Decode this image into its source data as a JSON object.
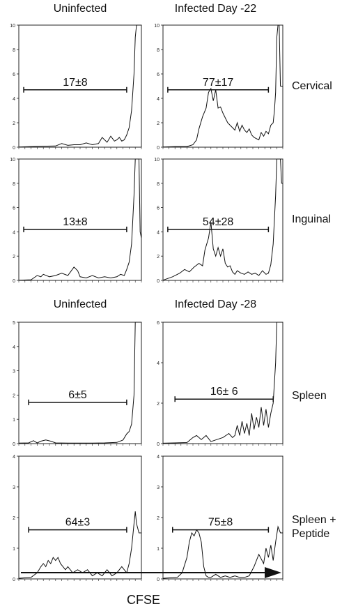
{
  "headers": {
    "top_left": "Uninfected",
    "top_right": "Infected Day -22",
    "bottom_left": "Uninfected",
    "bottom_right": "Infected Day -28"
  },
  "row_labels": {
    "cervical": "Cervical",
    "inguinal": "Inguinal",
    "spleen": "Spleen",
    "spleen_peptide_line1": "Spleen +",
    "spleen_peptide_line2": "Peptide"
  },
  "x_axis_label": "CFSE",
  "chart_data": [
    {
      "type": "line",
      "id": "cervical-uninfected",
      "ylim": [
        0,
        10
      ],
      "yticks": [
        "0",
        "2",
        "4",
        "6",
        "8",
        "10"
      ],
      "xlim": [
        0,
        100
      ],
      "gate": {
        "label": "17±8",
        "x_start": 4,
        "x_end": 88,
        "y": 4.7
      },
      "x": [
        0,
        10,
        20,
        30,
        35,
        40,
        45,
        50,
        55,
        60,
        65,
        68,
        72,
        75,
        78,
        80,
        82,
        84,
        86,
        88,
        90,
        92,
        94,
        95,
        96,
        97,
        98,
        99,
        100
      ],
      "y": [
        0.02,
        0.05,
        0.08,
        0.1,
        0.3,
        0.15,
        0.2,
        0.2,
        0.35,
        0.2,
        0.3,
        0.8,
        0.4,
        0.9,
        0.5,
        0.6,
        0.8,
        0.5,
        0.6,
        1.0,
        1.6,
        3.0,
        6.0,
        9.0,
        10,
        10,
        10,
        10,
        10
      ]
    },
    {
      "type": "line",
      "id": "cervical-infected",
      "ylim": [
        0,
        10
      ],
      "yticks": [
        "0",
        "2",
        "4",
        "6",
        "8",
        "10"
      ],
      "xlim": [
        0,
        100
      ],
      "gate": {
        "label": "77±17",
        "x_start": 4,
        "x_end": 88,
        "y": 4.7
      },
      "x": [
        0,
        10,
        20,
        25,
        28,
        30,
        33,
        36,
        38,
        40,
        42,
        44,
        46,
        48,
        50,
        52,
        54,
        56,
        58,
        60,
        62,
        64,
        66,
        68,
        70,
        72,
        74,
        76,
        78,
        80,
        82,
        84,
        86,
        88,
        90,
        92,
        93,
        94,
        95,
        96,
        97,
        98,
        99,
        100
      ],
      "y": [
        0.02,
        0.05,
        0.05,
        0.2,
        0.6,
        1.5,
        2.5,
        3.2,
        4.5,
        4.8,
        3.8,
        4.7,
        3.2,
        3.3,
        2.8,
        2.4,
        2.0,
        1.8,
        1.6,
        1.4,
        2.0,
        1.3,
        1.8,
        1.4,
        1.2,
        1.5,
        1.0,
        0.8,
        0.7,
        0.6,
        1.2,
        0.9,
        1.3,
        1.1,
        1.8,
        2.0,
        3.0,
        4.5,
        9.0,
        10,
        10,
        5.0,
        5.0,
        5.0
      ]
    },
    {
      "type": "line",
      "id": "inguinal-uninfected",
      "ylim": [
        0,
        10
      ],
      "yticks": [
        "0",
        "2",
        "4",
        "6",
        "8",
        "10"
      ],
      "xlim": [
        0,
        100
      ],
      "gate": {
        "label": "13±8",
        "x_start": 4,
        "x_end": 88,
        "y": 4.2
      },
      "x": [
        0,
        10,
        15,
        18,
        20,
        25,
        30,
        35,
        40,
        45,
        48,
        50,
        55,
        60,
        65,
        70,
        75,
        80,
        83,
        86,
        88,
        90,
        92,
        94,
        95,
        96,
        97,
        98,
        99,
        100
      ],
      "y": [
        0.02,
        0.05,
        0.4,
        0.3,
        0.5,
        0.3,
        0.4,
        0.6,
        0.4,
        1.1,
        0.8,
        0.3,
        0.2,
        0.4,
        0.2,
        0.3,
        0.2,
        0.3,
        0.5,
        0.4,
        0.9,
        1.5,
        3.0,
        7.0,
        10,
        10,
        10,
        10,
        4.0,
        3.5
      ]
    },
    {
      "type": "line",
      "id": "inguinal-infected",
      "ylim": [
        0,
        10
      ],
      "yticks": [
        "0",
        "2",
        "4",
        "6",
        "8",
        "10"
      ],
      "xlim": [
        0,
        100
      ],
      "gate": {
        "label": "54±28",
        "x_start": 4,
        "x_end": 88,
        "y": 4.2
      },
      "x": [
        0,
        8,
        14,
        18,
        22,
        26,
        30,
        33,
        35,
        38,
        40,
        42,
        44,
        46,
        48,
        50,
        52,
        54,
        56,
        58,
        60,
        62,
        65,
        68,
        71,
        74,
        77,
        80,
        83,
        86,
        88,
        90,
        92,
        94,
        95,
        96,
        97,
        98,
        99,
        100
      ],
      "y": [
        0.02,
        0.3,
        0.6,
        0.9,
        0.7,
        1.1,
        1.4,
        1.2,
        2.5,
        3.5,
        4.8,
        2.6,
        2.0,
        2.7,
        2.0,
        2.6,
        1.4,
        1.1,
        1.2,
        0.7,
        0.5,
        0.8,
        0.6,
        0.5,
        0.7,
        0.5,
        0.6,
        0.4,
        0.8,
        0.5,
        0.6,
        1.3,
        3.0,
        7.0,
        10,
        10,
        10,
        10,
        8.0,
        8.0
      ]
    },
    {
      "type": "line",
      "id": "spleen-uninfected",
      "ylim": [
        0,
        5
      ],
      "yticks": [
        "0",
        "1",
        "2",
        "3",
        "4",
        "5"
      ],
      "xlim": [
        0,
        100
      ],
      "gate": {
        "label": "6±5",
        "x_start": 8,
        "x_end": 88,
        "y": 1.7
      },
      "x": [
        0,
        8,
        12,
        15,
        18,
        22,
        26,
        30,
        40,
        50,
        60,
        70,
        80,
        85,
        88,
        90,
        92,
        94,
        95,
        96,
        97,
        98,
        99,
        100
      ],
      "y": [
        0.02,
        0.03,
        0.12,
        0.03,
        0.1,
        0.15,
        0.1,
        0.03,
        0.02,
        0.02,
        0.02,
        0.03,
        0.05,
        0.15,
        0.4,
        0.5,
        0.8,
        2.0,
        5,
        5,
        5,
        5,
        5,
        5
      ]
    },
    {
      "type": "line",
      "id": "spleen-infected",
      "ylim": [
        0,
        6
      ],
      "yticks": [
        "0",
        "2",
        "4",
        "6"
      ],
      "xlim": [
        0,
        100
      ],
      "gate": {
        "label": "16± 6",
        "x_start": 10,
        "x_end": 92,
        "y": 2.2
      },
      "x": [
        0,
        20,
        25,
        28,
        32,
        36,
        40,
        45,
        50,
        55,
        58,
        60,
        62,
        64,
        66,
        68,
        70,
        72,
        74,
        76,
        78,
        80,
        82,
        84,
        86,
        88,
        90,
        92,
        94,
        95,
        96,
        97,
        98,
        99,
        100
      ],
      "y": [
        0.02,
        0.05,
        0.3,
        0.4,
        0.2,
        0.4,
        0.1,
        0.2,
        0.3,
        0.5,
        0.3,
        0.4,
        0.9,
        0.4,
        1.1,
        0.5,
        1.0,
        0.4,
        1.5,
        0.7,
        1.3,
        0.8,
        1.8,
        0.9,
        1.7,
        0.8,
        1.5,
        2.0,
        4.0,
        6,
        6,
        6,
        6,
        6,
        6
      ]
    },
    {
      "type": "line",
      "id": "spleen-peptide-uninfected",
      "ylim": [
        0,
        4
      ],
      "yticks": [
        "0",
        "1",
        "2",
        "3",
        "4"
      ],
      "xlim": [
        0,
        100
      ],
      "gate": {
        "label": "64±3",
        "x_start": 8,
        "x_end": 88,
        "y": 1.6
      },
      "x": [
        0,
        10,
        15,
        18,
        20,
        22,
        24,
        26,
        28,
        30,
        32,
        34,
        36,
        38,
        40,
        44,
        48,
        52,
        56,
        60,
        64,
        68,
        72,
        76,
        80,
        84,
        88,
        90,
        92,
        94,
        95,
        96,
        98,
        100
      ],
      "y": [
        0.02,
        0.05,
        0.2,
        0.4,
        0.5,
        0.4,
        0.6,
        0.5,
        0.7,
        0.6,
        0.7,
        0.5,
        0.4,
        0.3,
        0.4,
        0.2,
        0.3,
        0.2,
        0.3,
        0.1,
        0.2,
        0.1,
        0.3,
        0.1,
        0.2,
        0.4,
        0.2,
        0.5,
        1.0,
        1.8,
        2.2,
        1.8,
        1.5,
        1.5
      ]
    },
    {
      "type": "line",
      "id": "spleen-peptide-infected",
      "ylim": [
        0,
        4
      ],
      "yticks": [
        "0",
        "1",
        "2",
        "3",
        "4"
      ],
      "xlim": [
        0,
        100
      ],
      "gate": {
        "label": "75±8",
        "x_start": 8,
        "x_end": 88,
        "y": 1.6
      },
      "x": [
        0,
        12,
        16,
        20,
        22,
        24,
        26,
        28,
        30,
        32,
        34,
        36,
        38,
        40,
        44,
        48,
        52,
        56,
        60,
        64,
        68,
        72,
        76,
        80,
        84,
        86,
        88,
        90,
        92,
        94,
        96,
        98,
        100
      ],
      "y": [
        0.02,
        0.05,
        0.2,
        0.7,
        1.2,
        1.5,
        1.4,
        1.6,
        1.5,
        1.2,
        0.4,
        0.1,
        0.05,
        0.05,
        0.15,
        0.05,
        0.1,
        0.05,
        0.1,
        0.05,
        0.05,
        0.1,
        0.4,
        0.8,
        0.5,
        1.0,
        0.7,
        1.1,
        0.6,
        1.2,
        1.7,
        1.5,
        1.5
      ]
    }
  ]
}
